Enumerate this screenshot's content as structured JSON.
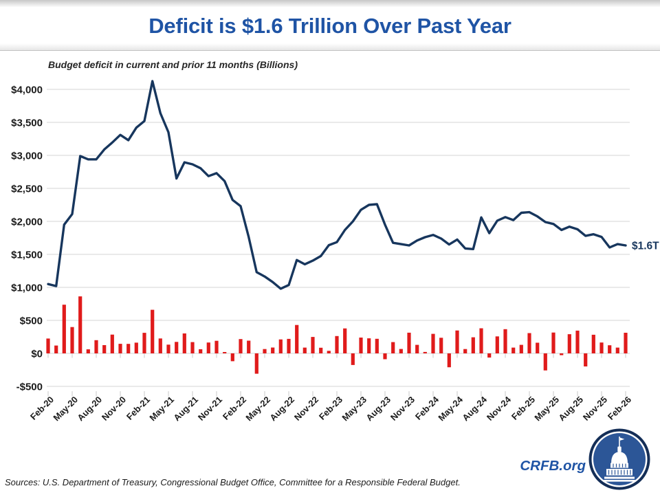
{
  "header": {
    "title": "Deficit is $1.6 Trillion Over Past Year"
  },
  "chart": {
    "subtitle": "Budget deficit in current and prior 11 months (Billions)"
  },
  "colors": {
    "title_blue": "#1F54A5",
    "line_navy": "#17365D",
    "bar_red": "#E01B1B",
    "gridline": "#D6D6D6",
    "tick_gray": "#C8C8C8",
    "axis_text": "#1A1A1A",
    "logo_disc_blue": "#2C5697",
    "logo_ring_navy": "#142E57"
  },
  "chart_data": {
    "type": "line+bar",
    "title": "Deficit is $1.6 Trillion Over Past Year",
    "subtitle": "Budget deficit in current and prior 11 months (Billions)",
    "unit": "billions of dollars",
    "grid": "horizontal",
    "legend": "none",
    "end_label": "$1.6T",
    "ylim": [
      -500,
      4250
    ],
    "y_ticks": [
      4000,
      3500,
      3000,
      2500,
      2000,
      1500,
      1000,
      500,
      0,
      -500
    ],
    "y_tick_labels": [
      "$4,000",
      "$3,500",
      "$3,000",
      "$2,500",
      "$2,000",
      "$1,500",
      "$1,000",
      "$500",
      "$0",
      "-$500"
    ],
    "x": [
      "Feb-20",
      "Mar-20",
      "Apr-20",
      "May-20",
      "Jun-20",
      "Jul-20",
      "Aug-20",
      "Sep-20",
      "Oct-20",
      "Nov-20",
      "Dec-20",
      "Jan-21",
      "Feb-21",
      "Mar-21",
      "Apr-21",
      "May-21",
      "Jun-21",
      "Jul-21",
      "Aug-21",
      "Sep-21",
      "Oct-21",
      "Nov-21",
      "Dec-21",
      "Jan-22",
      "Feb-22",
      "Mar-22",
      "Apr-22",
      "May-22",
      "Jun-22",
      "Jul-22",
      "Aug-22",
      "Sep-22",
      "Oct-22",
      "Nov-22",
      "Dec-22",
      "Jan-23",
      "Feb-23",
      "Mar-23",
      "Apr-23",
      "May-23",
      "Jun-23",
      "Jul-23",
      "Aug-23",
      "Sep-23",
      "Oct-23",
      "Nov-23",
      "Dec-23",
      "Jan-24",
      "Feb-24",
      "Mar-24",
      "Apr-24",
      "May-24",
      "Jun-24",
      "Jul-24",
      "Aug-24",
      "Sep-24",
      "Oct-24",
      "Nov-24",
      "Dec-24",
      "Jan-25",
      "Feb-25",
      "Mar-25",
      "Apr-25",
      "May-25",
      "Jun-25",
      "Jul-25",
      "Aug-25",
      "Sep-25",
      "Oct-25",
      "Nov-25",
      "Dec-25",
      "Jan-26",
      "Feb-26"
    ],
    "x_tick_labels": [
      "Feb-20",
      "May-20",
      "Aug-20",
      "Nov-20",
      "Feb-21",
      "May-21",
      "Aug-21",
      "Nov-21",
      "Feb-22",
      "May-22",
      "Aug-22",
      "Nov-22",
      "Feb-23",
      "May-23",
      "Aug-23",
      "Nov-23",
      "Feb-24",
      "May-24",
      "Aug-24",
      "Nov-24",
      "Feb-25",
      "May-25",
      "Aug-25",
      "Nov-25",
      "Feb-26"
    ],
    "series": [
      {
        "name": "Deficit over current and prior 11 months",
        "type": "line",
        "color": "#17365D",
        "values": [
          1050,
          1020,
          1950,
          2110,
          2990,
          2940,
          2940,
          3090,
          3195,
          3310,
          3230,
          3420,
          3520,
          4125,
          3640,
          3350,
          2650,
          2895,
          2865,
          2805,
          2685,
          2730,
          2610,
          2325,
          2230,
          1765,
          1230,
          1165,
          1080,
          980,
          1035,
          1415,
          1350,
          1405,
          1475,
          1640,
          1685,
          1870,
          2000,
          2175,
          2250,
          2260,
          1950,
          1675,
          1655,
          1635,
          1710,
          1760,
          1795,
          1740,
          1650,
          1725,
          1590,
          1580,
          2060,
          1822,
          2010,
          2065,
          2020,
          2130,
          2140,
          2075,
          1990,
          1960,
          1870,
          1920,
          1880,
          1780,
          1805,
          1765,
          1605,
          1655,
          1635
        ]
      },
      {
        "name": "Monthly deficit",
        "type": "bar",
        "color": "#E01B1B",
        "values": [
          225,
          119,
          738,
          399,
          864,
          61,
          200,
          125,
          284,
          145,
          144,
          163,
          311,
          660,
          226,
          132,
          174,
          302,
          171,
          62,
          165,
          191,
          21,
          -119,
          217,
          193,
          -308,
          66,
          89,
          211,
          220,
          430,
          88,
          249,
          85,
          39,
          262,
          378,
          -176,
          240,
          228,
          221,
          -89,
          171,
          67,
          314,
          129,
          22,
          296,
          236,
          -210,
          347,
          66,
          244,
          380,
          -64,
          257,
          367,
          87,
          129,
          307,
          161,
          -258,
          316,
          -27,
          291,
          345,
          -198,
          282,
          165,
          123,
          88,
          313
        ]
      }
    ]
  },
  "footer": {
    "sources": "Sources: U.S. Department of Treasury, Congressional Budget Office, Committee for a Responsible Federal Budget.",
    "site": "CRFB.org"
  }
}
